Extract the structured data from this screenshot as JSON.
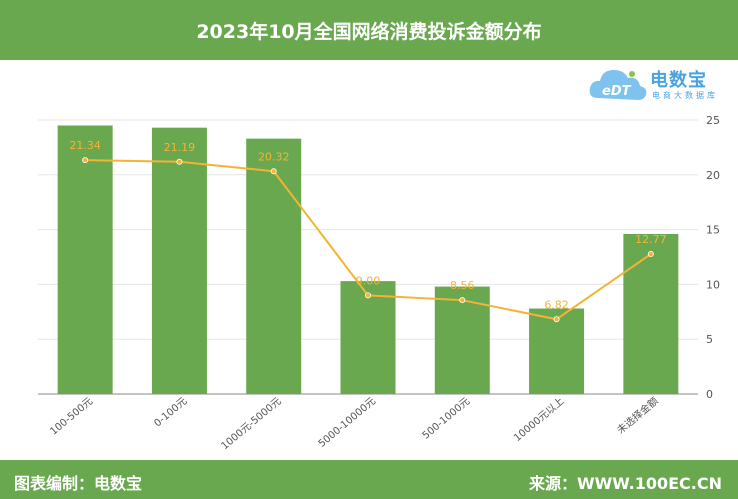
{
  "header": {
    "title": "2023年10月全国网络消费投诉金额分布"
  },
  "footer": {
    "left": "图表编制：电数宝",
    "right": "来源：WWW.100EC.CN"
  },
  "logo": {
    "brand": "电数宝",
    "subtitle": "电商大数据库"
  },
  "colors": {
    "bar": "#6aa84f",
    "line": "#f5b335",
    "header": "#6aa84f",
    "label": "#f5b335"
  },
  "chart_data": {
    "type": "bar",
    "title": "2023年10月全国网络消费投诉金额分布",
    "xlabel": "",
    "ylabel": "",
    "unit": "%",
    "categories": [
      "100-500元",
      "0-100元",
      "1000元-5000元",
      "5000-10000元",
      "500-1000元",
      "10000元以上",
      "未选择金额"
    ],
    "ylim": [
      0,
      25
    ],
    "yticks": [
      0,
      5,
      10,
      15,
      20,
      25
    ],
    "series": [
      {
        "type": "bar",
        "values": [
          24.5,
          24.3,
          23.3,
          10.3,
          9.8,
          7.8,
          14.6
        ]
      },
      {
        "type": "line",
        "values": [
          21.34,
          21.19,
          20.32,
          9.0,
          8.56,
          6.82,
          12.77
        ]
      }
    ],
    "grid": true,
    "legend": "none"
  }
}
